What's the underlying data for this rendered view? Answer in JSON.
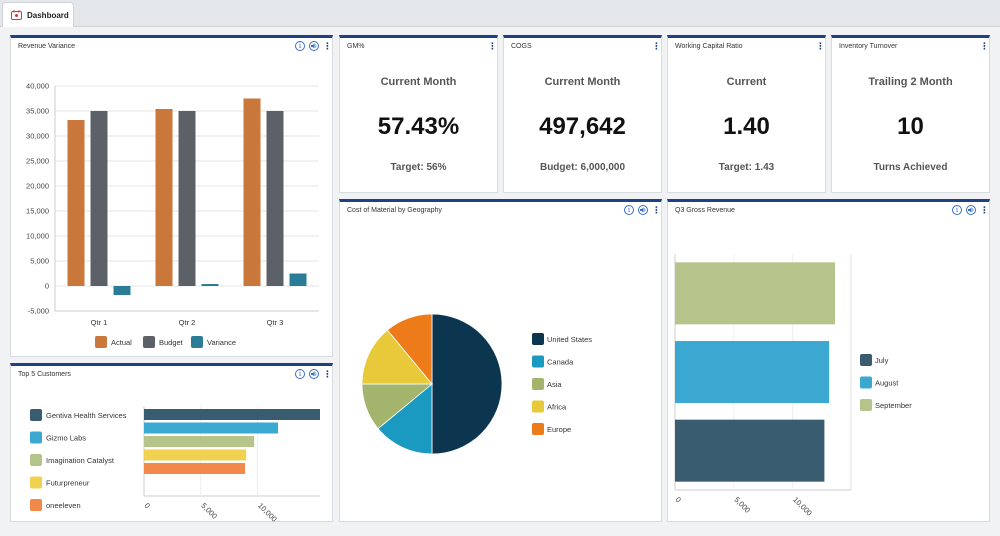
{
  "tabs": [
    {
      "label": "Dashboard"
    }
  ],
  "cards": {
    "revenue_variance": {
      "title": "Revenue Variance"
    },
    "gm": {
      "title": "GM%",
      "subtitle": "Current Month",
      "value": "57.43%",
      "footer": "Target: 56%"
    },
    "cogs": {
      "title": "COGS",
      "subtitle": "Current Month",
      "value": "497,642",
      "footer": "Budget: 6,000,000"
    },
    "wcr": {
      "title": "Working Capital Ratio",
      "subtitle": "Current",
      "value": "1.40",
      "footer": "Target: 1.43"
    },
    "inventory": {
      "title": "Inventory Turnover",
      "subtitle": "Trailing 2 Month",
      "value": "10",
      "footer": "Turns Achieved"
    },
    "cost_geo": {
      "title": "Cost of Material by Geography"
    },
    "q3": {
      "title": "Q3 Gross Revenue"
    },
    "top5": {
      "title": "Top 5 Customers"
    }
  },
  "tools": {
    "info_glyph": "i",
    "more_glyph": "⋮",
    "icons": [
      "info-icon",
      "audio-icon",
      "more-menu-icon"
    ]
  },
  "colors": {
    "accent": "#1f3f86",
    "actual": "#c9773a",
    "budget": "#5c6168",
    "variance": "#2b7c96"
  },
  "chart_data": [
    {
      "id": "revenue_variance",
      "type": "bar",
      "categories": [
        "Qtr 1",
        "Qtr 2",
        "Qtr 3"
      ],
      "series": [
        {
          "name": "Actual",
          "values": [
            33200,
            35400,
            37500
          ],
          "color": "#c9773a"
        },
        {
          "name": "Budget",
          "values": [
            35000,
            35000,
            35000
          ],
          "color": "#5c6168"
        },
        {
          "name": "Variance",
          "values": [
            -1800,
            400,
            2500
          ],
          "color": "#2b7c96"
        }
      ],
      "yticks": [
        "40,000",
        "35,000",
        "30,000",
        "25,000",
        "20,000",
        "15,000",
        "10,000",
        "5,000",
        "0",
        "-5,000"
      ],
      "ylim": [
        -5000,
        40000
      ],
      "grid": true,
      "legend": "bottom"
    },
    {
      "id": "cost_geo",
      "type": "pie",
      "labels": [
        "United States",
        "Canada",
        "Asia",
        "Africa",
        "Europe"
      ],
      "values": [
        50,
        14,
        11,
        14,
        11
      ],
      "colors": [
        "#0c3550",
        "#1a9ac0",
        "#a3b56c",
        "#e8c93a",
        "#ee7b1a"
      ],
      "legend": "right"
    },
    {
      "id": "q3",
      "type": "bar",
      "orientation": "horizontal",
      "categories": [
        "September",
        "August",
        "July"
      ],
      "values": [
        13600,
        13100,
        12700
      ],
      "colors": [
        "#b5c48a",
        "#3aa8d0",
        "#3a5c70"
      ],
      "legend_labels": [
        "July",
        "August",
        "September"
      ],
      "legend_colors": [
        "#3a5c70",
        "#3aa8d0",
        "#b5c48a"
      ],
      "xticks": [
        "0",
        "5,000",
        "10,000"
      ],
      "xlim": [
        0,
        13600
      ],
      "legend": "right"
    },
    {
      "id": "top5",
      "type": "bar",
      "orientation": "horizontal",
      "categories": [
        "Gentiva Health Services",
        "Gizmo Labs",
        "Imagination Catalyst",
        "Futurpreneur",
        "oneeleven"
      ],
      "values": [
        15500,
        11800,
        9700,
        9000,
        8900
      ],
      "colors": [
        "#3a5c70",
        "#3aa8d0",
        "#b5c48a",
        "#f0d250",
        "#f0894a"
      ],
      "xticks": [
        "0",
        "5,000",
        "10,000"
      ],
      "xlim": [
        0,
        15500
      ],
      "legend": "left"
    }
  ]
}
